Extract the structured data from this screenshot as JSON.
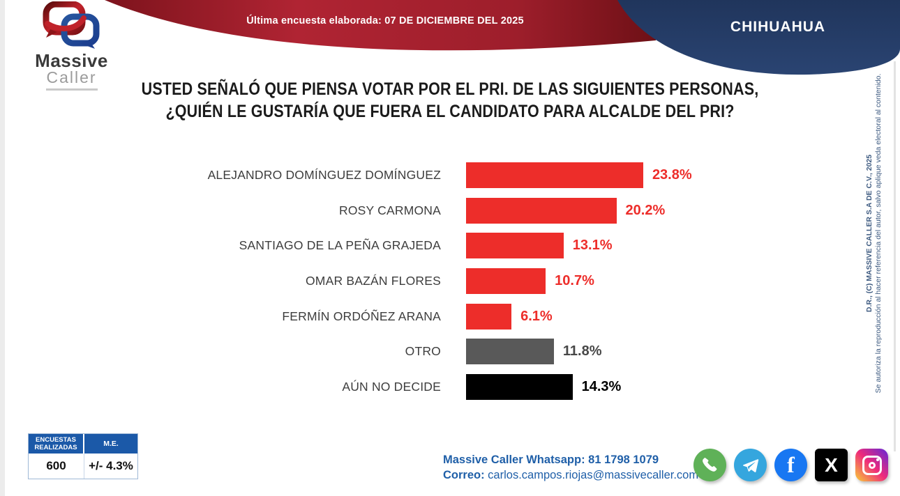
{
  "header": {
    "last_survey_label": "Última encuesta elaborada: 07 DE DICIEMBRE DEL 2025",
    "region": "CHIHUAHUA",
    "ribbon_red": "#a52430",
    "navy_blue": "#24395f"
  },
  "logo": {
    "line1": "Massive",
    "line2": "Caller"
  },
  "title": {
    "line1": "USTED SEÑALÓ QUE PIENSA VOTAR POR EL PRI. DE LAS SIGUIENTES PERSONAS,",
    "line2": "¿QUIÉN LE GUSTARÍA QUE FUERA EL CANDIDATO PARA ALCALDE DEL PRI?"
  },
  "chart_data": {
    "type": "bar",
    "orientation": "horizontal",
    "title": "¿Quién le gustaría que fuera el candidato para alcalde del PRI?",
    "xlabel": "",
    "ylabel": "",
    "xlim": [
      0,
      25
    ],
    "grid": false,
    "categories": [
      "ALEJANDRO DOMÍNGUEZ DOMÍNGUEZ",
      "ROSY CARMONA",
      "SANTIAGO DE LA PEÑA GRAJEDA",
      "OMAR BAZÁN FLORES",
      "FERMÍN ORDÓÑEZ ARANA",
      "OTRO",
      "AÚN NO DECIDE"
    ],
    "values": [
      23.8,
      20.2,
      13.1,
      10.7,
      6.1,
      11.8,
      14.3
    ],
    "rows": [
      {
        "label": "ALEJANDRO DOMÍNGUEZ DOMÍNGUEZ",
        "value": 23.8,
        "display": "23.8%",
        "bar_color": "#ed2d2a",
        "value_color": "#ed2d2a"
      },
      {
        "label": "ROSY CARMONA",
        "value": 20.2,
        "display": "20.2%",
        "bar_color": "#ed2d2a",
        "value_color": "#ed2d2a"
      },
      {
        "label": "SANTIAGO DE LA PEÑA GRAJEDA",
        "value": 13.1,
        "display": "13.1%",
        "bar_color": "#ed2d2a",
        "value_color": "#ed2d2a"
      },
      {
        "label": "OMAR BAZÁN FLORES",
        "value": 10.7,
        "display": "10.7%",
        "bar_color": "#ed2d2a",
        "value_color": "#ed2d2a"
      },
      {
        "label": "FERMÍN ORDÓÑEZ ARANA",
        "value": 6.1,
        "display": "6.1%",
        "bar_color": "#ed2d2a",
        "value_color": "#ed2d2a"
      },
      {
        "label": "OTRO",
        "value": 11.8,
        "display": "11.8%",
        "bar_color": "#595959",
        "value_color": "#474747"
      },
      {
        "label": "AÚN NO DECIDE",
        "value": 14.3,
        "display": "14.3%",
        "bar_color": "#000000",
        "value_color": "#000000"
      }
    ]
  },
  "stats": {
    "col1_header": "ENCUESTAS REALIZADAS",
    "col2_header": "M.E.",
    "col1_value": "600",
    "col2_value": "+/- 4.3%",
    "header_color": "#1b59a8"
  },
  "contact": {
    "whatsapp_line": "Massive Caller Whatsapp: 81 1798 1079",
    "email_label": "Correo:",
    "email_value": " carlos.campos.riojas@massivecaller.com"
  },
  "social": {
    "icons": [
      "whatsapp",
      "telegram",
      "facebook",
      "x",
      "instagram"
    ],
    "facebook_glyph": "f",
    "x_glyph": "X"
  },
  "copyright": {
    "line1": "D.R., (C) MASSIVE CALLER S.A DE C.V., 2025",
    "line2": "Se autoriza la reproducción al hacer referencia del autor, salvo aplique veda electoral al contenido."
  }
}
